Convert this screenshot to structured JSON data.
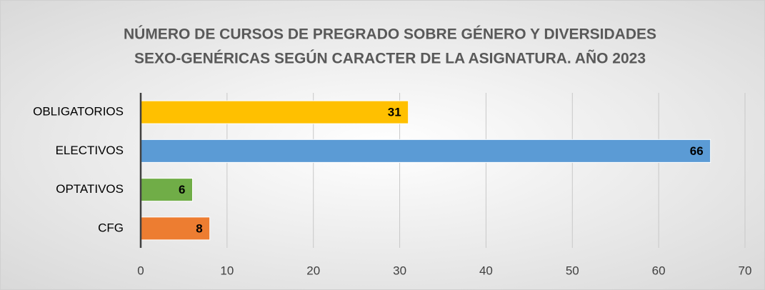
{
  "chart_data": {
    "type": "bar",
    "orientation": "horizontal",
    "title": [
      "NÚMERO DE CURSOS DE PREGRADO SOBRE GÉNERO Y DIVERSIDADES",
      "SEXO-GENÉRICAS SEGÚN CARACTER DE  LA ASIGNATURA. AÑO 2023"
    ],
    "categories": [
      "OBLIGATORIOS",
      "ELECTIVOS",
      "OPTATIVOS",
      "CFG"
    ],
    "values": [
      31,
      66,
      6,
      8
    ],
    "colors": [
      "#ffc000",
      "#5b9bd5",
      "#70ad47",
      "#ed7d31"
    ],
    "xlim": [
      0,
      70
    ],
    "xticks": [
      0,
      10,
      20,
      30,
      40,
      50,
      60,
      70
    ],
    "grid": true
  }
}
